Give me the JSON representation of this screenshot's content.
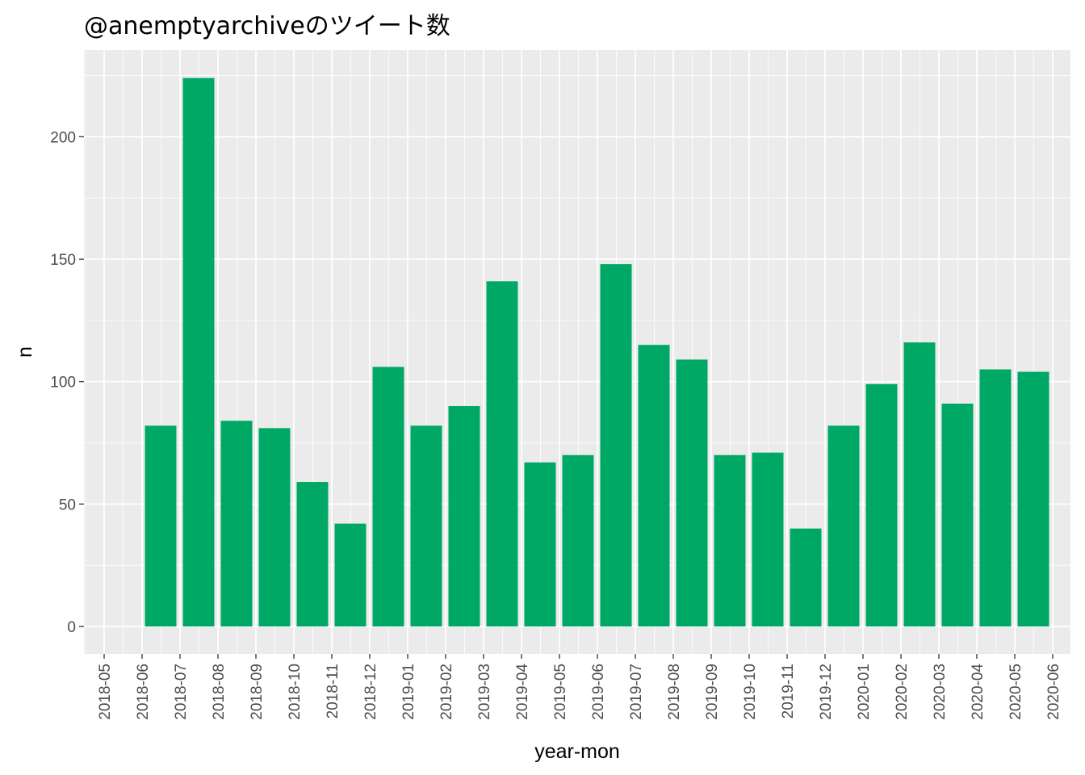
{
  "chart_data": {
    "type": "bar",
    "title": "@anemptyarchiveのツイート数",
    "xlabel": "year-mon",
    "ylabel": "n",
    "x_ticks": [
      "2018-05",
      "2018-06",
      "2018-07",
      "2018-08",
      "2018-09",
      "2018-10",
      "2018-11",
      "2018-12",
      "2019-01",
      "2019-02",
      "2019-03",
      "2019-04",
      "2019-05",
      "2019-06",
      "2019-07",
      "2019-08",
      "2019-09",
      "2019-10",
      "2019-11",
      "2019-12",
      "2020-01",
      "2020-02",
      "2020-03",
      "2020-04",
      "2020-05",
      "2020-06"
    ],
    "y_ticks": [
      0,
      50,
      100,
      150,
      200
    ],
    "categories": [
      "2018-06",
      "2018-07",
      "2018-08",
      "2018-09",
      "2018-10",
      "2018-11",
      "2018-12",
      "2019-01",
      "2019-02",
      "2019-03",
      "2019-04",
      "2019-05",
      "2019-06",
      "2019-07",
      "2019-08",
      "2019-09",
      "2019-10",
      "2019-11",
      "2019-12",
      "2020-01",
      "2020-02",
      "2020-03",
      "2020-04",
      "2020-05"
    ],
    "values": [
      82,
      224,
      84,
      81,
      59,
      42,
      106,
      82,
      90,
      141,
      67,
      70,
      148,
      115,
      109,
      70,
      71,
      40,
      82,
      99,
      116,
      91,
      105,
      104
    ],
    "ylim": [
      -11.2,
      235.2
    ],
    "bar_color": "#00A866",
    "panel_background": "#EBEBEB",
    "grid_color": "#FFFFFF",
    "grid": true
  }
}
